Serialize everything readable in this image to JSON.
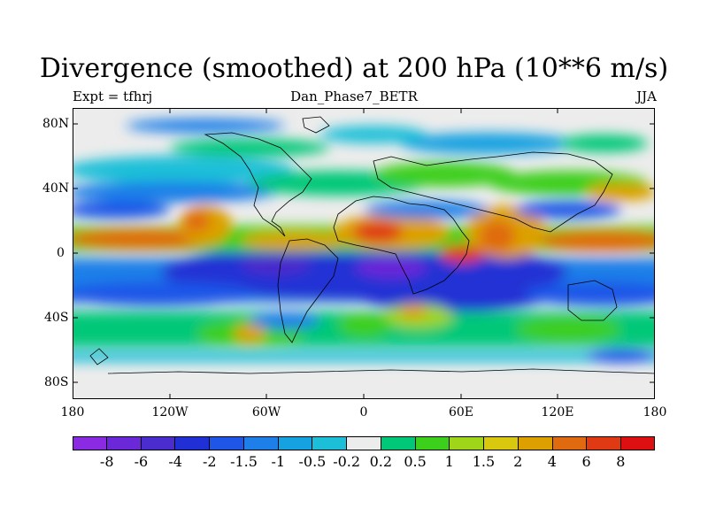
{
  "title": "Divergence (smoothed) at 200 hPa (10**6 m/s)",
  "subtitle_left": "Expt = tfhrj",
  "subtitle_center": "Dan_Phase7_BETR",
  "subtitle_right": "JJA",
  "lat_labels": [
    "80N",
    "40N",
    "0",
    "40S",
    "80S"
  ],
  "lon_labels": [
    "180",
    "120W",
    "60W",
    "0",
    "60E",
    "120E",
    "180"
  ],
  "colorbar": {
    "colors": [
      "#8a2be2",
      "#6a28d8",
      "#4b2ccc",
      "#2030d4",
      "#1f56e8",
      "#1f7fe8",
      "#16a1e0",
      "#1dbfd8",
      "#ececec",
      "#00c878",
      "#3ccf1c",
      "#9fd61a",
      "#d8c80e",
      "#dca000",
      "#e06a10",
      "#e03a14",
      "#dc1010"
    ],
    "labels": [
      "-8",
      "-6",
      "-4",
      "-2",
      "-1.5",
      "-1",
      "-0.5",
      "-0.2",
      "0.2",
      "0.5",
      "1",
      "1.5",
      "2",
      "4",
      "6",
      "8"
    ]
  },
  "colors": {
    "neutral": "#ececec",
    "positive_weak": "#00c878",
    "positive_mid": "#3ccf1c",
    "positive_strong": "#e06a10",
    "negative_weak": "#16a1e0",
    "negative_strong": "#2030d4",
    "negative_peak": "#6a28d8"
  }
}
